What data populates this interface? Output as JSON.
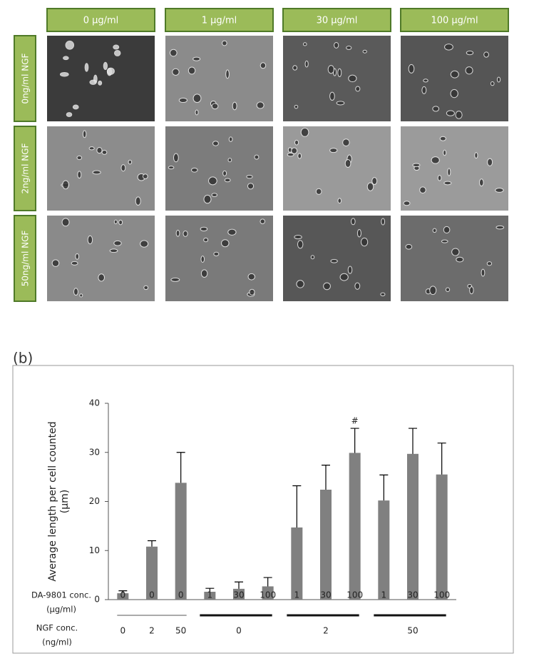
{
  "figure_a": {
    "columns": [
      "0 μg/ml",
      "1 μg/ml",
      "30 μg/ml",
      "100 μg/ml"
    ],
    "rows": [
      "0ng/ml NGF",
      "2ng/ml NGF",
      "50ng/ml NGF"
    ]
  },
  "panel_label": "(b)",
  "chart_data": {
    "type": "bar",
    "y_label": [
      "Average length per cell counted",
      "(μm)"
    ],
    "categories": [
      "0",
      "0",
      "0",
      "1",
      "30",
      "100",
      "1",
      "30",
      "100",
      "1",
      "30",
      "100"
    ],
    "values": [
      1.3,
      10.8,
      23.8,
      1.6,
      2.2,
      2.7,
      14.7,
      22.4,
      29.9,
      20.2,
      29.7,
      25.5
    ],
    "errors": [
      0.5,
      1.2,
      6.2,
      0.7,
      1.4,
      1.8,
      8.5,
      5,
      5,
      5.2,
      5.2,
      6.4
    ],
    "value_annotations": [
      null,
      null,
      null,
      null,
      null,
      null,
      null,
      null,
      "#",
      null,
      null,
      null
    ],
    "color": "#808080",
    "ylim": [
      0,
      40
    ],
    "yticks": [
      0,
      10,
      20,
      30,
      40
    ],
    "category_row_label": [
      "DA-9801 conc.",
      "(μg/ml)"
    ],
    "group_row_label": [
      "NGF  conc.",
      "(ng/ml)"
    ],
    "groups": [
      "0",
      "2",
      "50",
      "0",
      "2",
      "50"
    ]
  }
}
